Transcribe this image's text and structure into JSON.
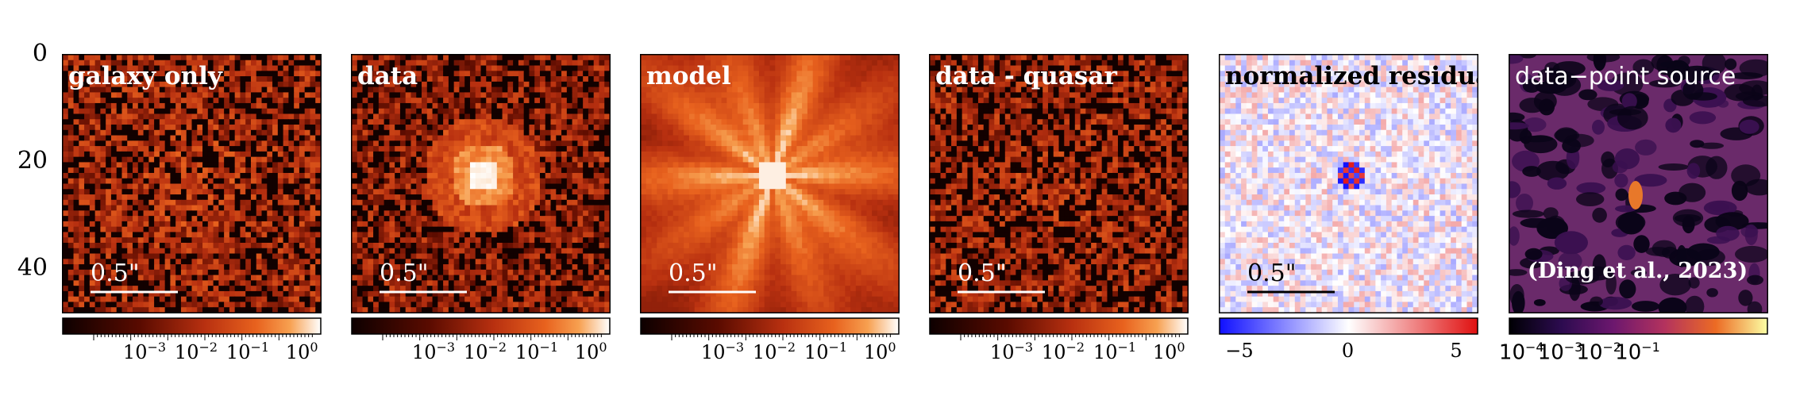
{
  "chart_data": {
    "type": "heatmap",
    "panels": [
      {
        "title": "galaxy only",
        "scalebar_label": "0.5\"",
        "colormap": "gist_heat",
        "colorbar_ticks": [
          "10−3",
          "10−2",
          "10−1",
          "100"
        ],
        "colorbar_scale": "log"
      },
      {
        "title": "data",
        "scalebar_label": "0.5\"",
        "colormap": "gist_heat",
        "colorbar_ticks": [
          "10−3",
          "10−2",
          "10−1",
          "100"
        ],
        "colorbar_scale": "log"
      },
      {
        "title": "model",
        "scalebar_label": "0.5\"",
        "colormap": "gist_heat",
        "colorbar_ticks": [
          "10−3",
          "10−2",
          "10−1",
          "100"
        ],
        "colorbar_scale": "log"
      },
      {
        "title": "data - quasar",
        "scalebar_label": "0.5\"",
        "colormap": "gist_heat",
        "colorbar_ticks": [
          "10−3",
          "10−2",
          "10−1",
          "100"
        ],
        "colorbar_scale": "log"
      },
      {
        "title": "normalized residual",
        "scalebar_label": "0.5\"",
        "colormap": "bwr",
        "colorbar_ticks": [
          "−5",
          "0",
          "5"
        ],
        "colorbar_scale": "linear",
        "colorbar_range": [
          -6,
          6
        ]
      },
      {
        "title": "data−point source",
        "annotation": "(Ding et al., 2023)",
        "colormap": "inferno",
        "colorbar_ticks": [
          "10−4",
          "10−3",
          "10−2",
          "10−1"
        ],
        "colorbar_scale": "log"
      }
    ],
    "y_axis_ticks": [
      "0",
      "20",
      "40"
    ],
    "ylim": [
      0,
      48
    ],
    "grid": false
  },
  "colors": {
    "heat_dark": "#1a0000",
    "heat_mid": "#c03a10",
    "heat_bright": "#fff5e0",
    "residual_blue": "#1f1fff",
    "residual_red": "#e01f1f",
    "inferno_dark": "#0a0118",
    "inferno_purple": "#5a1f6a",
    "inferno_orange": "#e8782a"
  }
}
